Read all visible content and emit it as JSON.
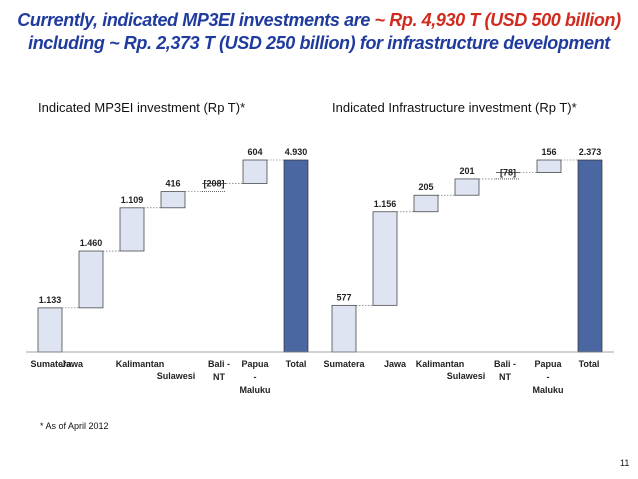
{
  "header": {
    "title_line1_a": "Currently, indicated MP3EI investments are ",
    "title_line1_b": "~ Rp. 4,930 T (USD 500 billion)",
    "title_line2": "including  ~ Rp. 2,373 T (USD 250 billion) for infrastructure development"
  },
  "colors": {
    "title_blue": "#1f3b9e",
    "title_red": "#d12a1e",
    "bar_fill": "#dfe4f2",
    "total_fill": "#4a67a1",
    "bar_stroke": "#333333"
  },
  "chart_data": [
    {
      "type": "bar",
      "subtype": "waterfall",
      "title": "Indicated MP3EI investment (Rp T)*",
      "categories": [
        "Sumatera",
        "Jawa",
        "Kalimantan",
        "Sulawesi",
        "Bali - NT",
        "Papua - Maluku",
        "Total"
      ],
      "category_labels": [
        [
          "Sumatera"
        ],
        [
          "Jawa"
        ],
        [
          "Kalimantan"
        ],
        [
          "Sulawesi"
        ],
        [
          "Bali -",
          "NT"
        ],
        [
          "Papua",
          "-",
          "Maluku"
        ],
        [
          "Total"
        ]
      ],
      "values": [
        1133,
        1460,
        1109,
        416,
        208,
        604,
        4930
      ],
      "value_labels": [
        "1.133",
        "1.460",
        "1.109",
        "416",
        "208",
        "604",
        "4.930"
      ],
      "ylim": [
        0,
        4930
      ]
    },
    {
      "type": "bar",
      "subtype": "waterfall",
      "title": "Indicated Infrastructure investment (Rp T)*",
      "categories": [
        "Sumatera",
        "Jawa",
        "Kalimantan",
        "Sulawesi",
        "Bali - NT",
        "Papua - Maluku",
        "Total"
      ],
      "category_labels": [
        [
          "Sumatera"
        ],
        [
          "Jawa"
        ],
        [
          "Kalimantan"
        ],
        [
          "Sulawesi"
        ],
        [
          "Bali -",
          "NT"
        ],
        [
          "Papua",
          "-",
          "Maluku"
        ],
        [
          "Total"
        ]
      ],
      "values": [
        577,
        1156,
        205,
        201,
        78,
        156,
        2373
      ],
      "value_labels": [
        "577",
        "1.156",
        "205",
        "201",
        "78",
        "156",
        "2.373"
      ],
      "ylim": [
        0,
        2373
      ]
    }
  ],
  "footnote": "* As of April 2012",
  "page_number": "11"
}
